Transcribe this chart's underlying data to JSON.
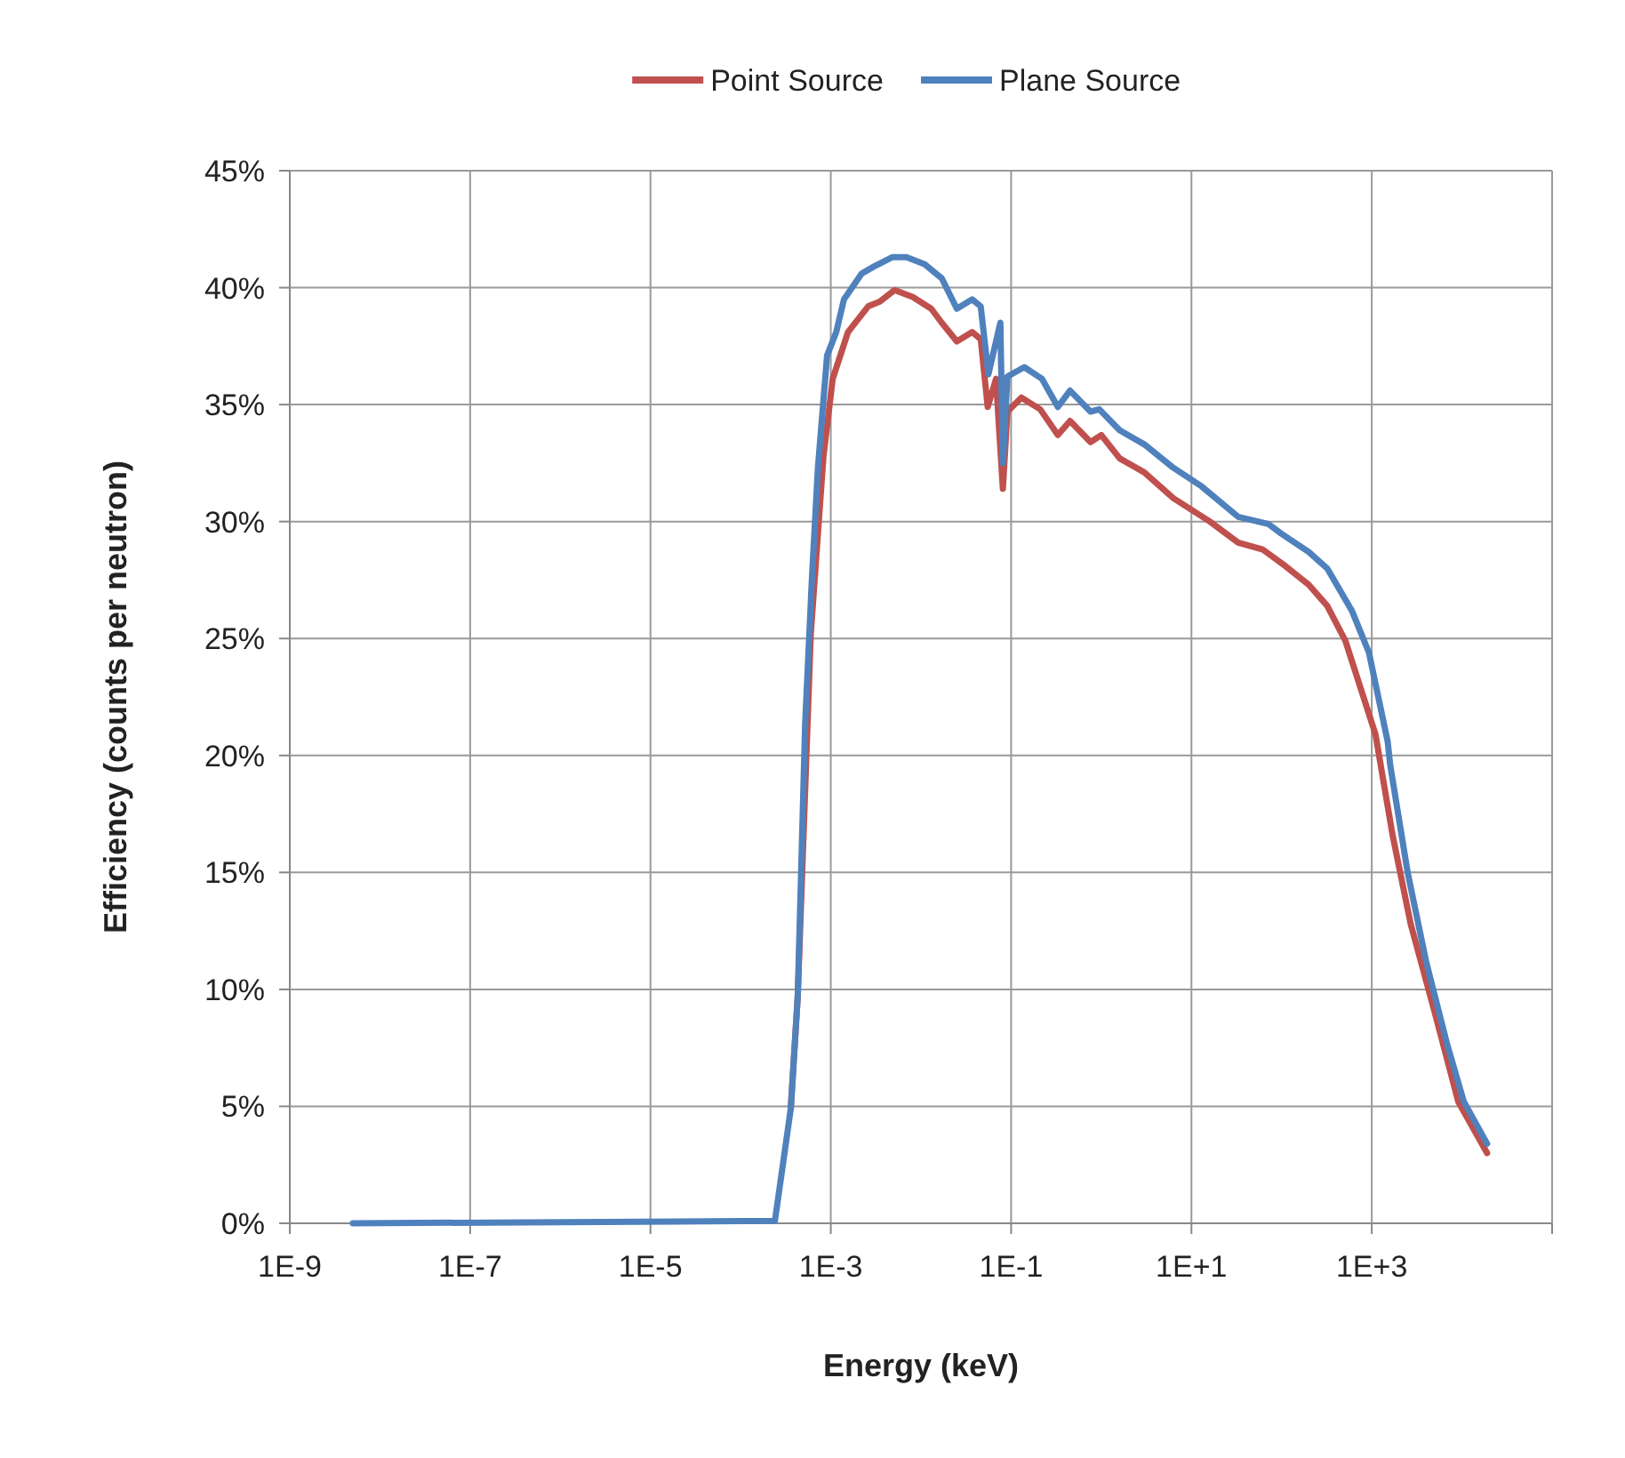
{
  "chart_data": {
    "type": "line",
    "xlabel": "Energy (keV)",
    "ylabel": "Efficiency (counts per neutron)",
    "log": "x",
    "grid": true,
    "legend": "top",
    "marker": "none",
    "line_style": "solid",
    "xlim": [
      1e-09,
      100000
    ],
    "xticks": [
      {
        "value": 1e-09,
        "label": "1E-9"
      },
      {
        "value": 1e-07,
        "label": "1E-7"
      },
      {
        "value": 1e-05,
        "label": "1E-5"
      },
      {
        "value": 0.001,
        "label": "1E-3"
      },
      {
        "value": 0.1,
        "label": "1E-1"
      },
      {
        "value": 10,
        "label": "1E+1"
      },
      {
        "value": 1000,
        "label": "1E+3"
      },
      {
        "value": 100000,
        "label": null
      }
    ],
    "ylim": [
      0,
      45
    ],
    "yticks": [
      {
        "value": 0,
        "label": "0%"
      },
      {
        "value": 5,
        "label": "5%"
      },
      {
        "value": 10,
        "label": "10%"
      },
      {
        "value": 15,
        "label": "15%"
      },
      {
        "value": 20,
        "label": "20%"
      },
      {
        "value": 25,
        "label": "25%"
      },
      {
        "value": 30,
        "label": "30%"
      },
      {
        "value": 35,
        "label": "35%"
      },
      {
        "value": 40,
        "label": "40%"
      },
      {
        "value": 45,
        "label": "45%"
      }
    ],
    "series": [
      {
        "name": "Point Source",
        "color": "#c0504d",
        "x": [
          0.00036,
          0.00043,
          0.0006,
          0.00083,
          0.00105,
          0.00155,
          0.0026,
          0.0035,
          0.0051,
          0.0081,
          0.013,
          0.017,
          0.025,
          0.037,
          0.046,
          0.055,
          0.068,
          0.081,
          0.091,
          0.13,
          0.21,
          0.33,
          0.45,
          0.76,
          1.0,
          1.6,
          3.0,
          6.3,
          16,
          33,
          62,
          110,
          200,
          320,
          510,
          1100,
          1700,
          2700,
          5000,
          9100,
          19000
        ],
        "values": [
          4.9,
          9.7,
          25.2,
          32.8,
          36.1,
          38.1,
          39.2,
          39.4,
          39.9,
          39.6,
          39.1,
          38.5,
          37.7,
          38.1,
          37.8,
          34.9,
          36.1,
          31.4,
          34.7,
          35.3,
          34.8,
          33.7,
          34.3,
          33.4,
          33.7,
          32.7,
          32.1,
          31.0,
          30.0,
          29.1,
          28.8,
          28.1,
          27.3,
          26.4,
          24.9,
          20.9,
          16.6,
          12.8,
          9.0,
          5.2,
          3.0
        ]
      },
      {
        "name": "Plane Source",
        "color": "#4f81bd",
        "x": [
          5e-09,
          0.00024,
          0.00036,
          0.00043,
          0.00052,
          0.00062,
          0.00072,
          0.00091,
          0.00115,
          0.0014,
          0.0022,
          0.003,
          0.0048,
          0.0069,
          0.011,
          0.017,
          0.025,
          0.037,
          0.046,
          0.056,
          0.076,
          0.081,
          0.091,
          0.14,
          0.22,
          0.33,
          0.45,
          0.76,
          0.95,
          1.6,
          3.0,
          6.3,
          13,
          33,
          71,
          98,
          200,
          320,
          600,
          930,
          1500,
          1600,
          2500,
          4000,
          6800,
          10500,
          19000
        ],
        "values": [
          0,
          0.1,
          4.9,
          9.7,
          21.4,
          27.7,
          32.3,
          37.1,
          38.1,
          39.5,
          40.6,
          40.9,
          41.3,
          41.3,
          41.0,
          40.4,
          39.1,
          39.5,
          39.2,
          36.3,
          38.5,
          32.5,
          36.2,
          36.6,
          36.1,
          34.9,
          35.6,
          34.7,
          34.8,
          33.9,
          33.3,
          32.3,
          31.5,
          30.2,
          29.9,
          29.5,
          28.7,
          28.0,
          26.2,
          24.4,
          20.6,
          19.6,
          15.0,
          11.2,
          7.7,
          5.2,
          3.4
        ]
      }
    ]
  }
}
